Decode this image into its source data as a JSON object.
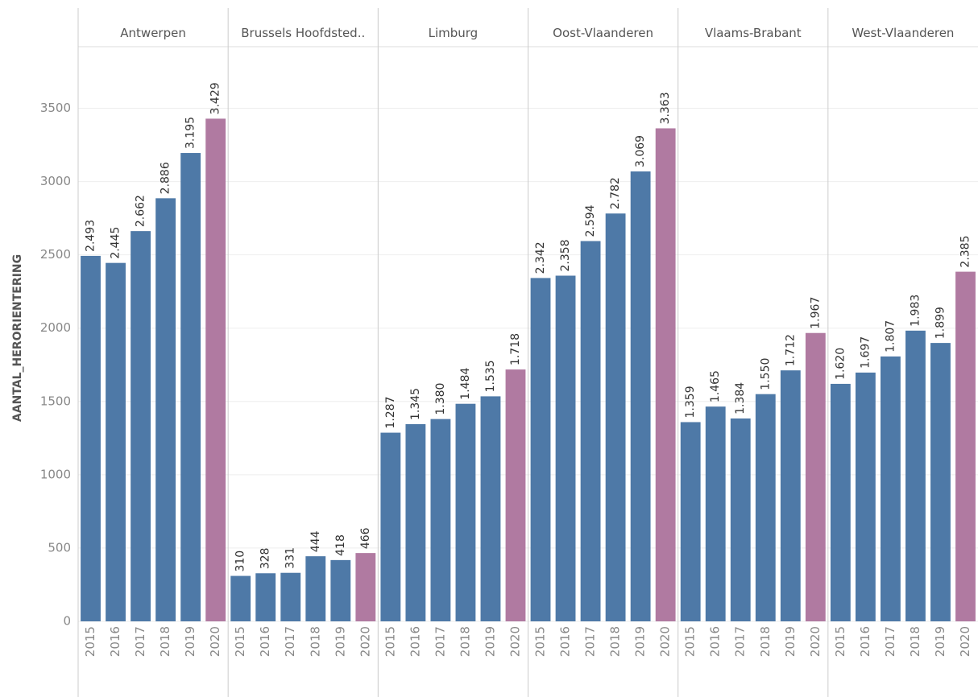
{
  "chart_data": {
    "type": "bar",
    "y_label": "AANTAL_HERORIENTERING",
    "categories": [
      "2015",
      "2016",
      "2017",
      "2018",
      "2019",
      "2020"
    ],
    "colors": [
      "#4e79a7",
      "#4e79a7",
      "#4e79a7",
      "#4e79a7",
      "#4e79a7",
      "#b07aa1"
    ],
    "ylim": [
      0,
      3920
    ],
    "yticks": [
      0,
      500,
      1000,
      1500,
      2000,
      2500,
      3000,
      3500
    ],
    "grid": true,
    "panels": [
      {
        "name": "Antwerpen",
        "values": [
          2493,
          2445,
          2662,
          2886,
          3195,
          3429
        ],
        "value_labels": [
          "2.493",
          "2.445",
          "2.662",
          "2.886",
          "3.195",
          "3.429"
        ]
      },
      {
        "name": "Brussels Hoofdsted..",
        "values": [
          310,
          328,
          331,
          444,
          418,
          466
        ],
        "value_labels": [
          "310",
          "328",
          "331",
          "444",
          "418",
          "466"
        ]
      },
      {
        "name": "Limburg",
        "values": [
          1287,
          1345,
          1380,
          1484,
          1535,
          1718
        ],
        "value_labels": [
          "1.287",
          "1.345",
          "1.380",
          "1.484",
          "1.535",
          "1.718"
        ]
      },
      {
        "name": "Oost-Vlaanderen",
        "values": [
          2342,
          2358,
          2594,
          2782,
          3069,
          3363
        ],
        "value_labels": [
          "2.342",
          "2.358",
          "2.594",
          "2.782",
          "3.069",
          "3.363"
        ]
      },
      {
        "name": "Vlaams-Brabant",
        "values": [
          1359,
          1465,
          1384,
          1550,
          1712,
          1967
        ],
        "value_labels": [
          "1.359",
          "1.465",
          "1.384",
          "1.550",
          "1.712",
          "1.967"
        ]
      },
      {
        "name": "West-Vlaanderen",
        "values": [
          1620,
          1697,
          1807,
          1983,
          1899,
          2385
        ],
        "value_labels": [
          "1.620",
          "1.697",
          "1.807",
          "1.983",
          "1.899",
          "2.385"
        ]
      }
    ]
  }
}
